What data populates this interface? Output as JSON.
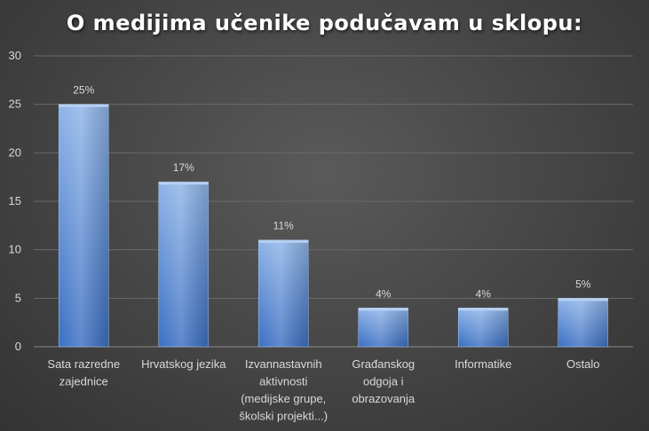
{
  "chart_data": {
    "type": "bar",
    "title": "O medijima učenike podučavam u sklopu:",
    "categories": [
      [
        "Sata razredne",
        "zajednice"
      ],
      [
        "Hrvatskog jezika"
      ],
      [
        "Izvannastavnih",
        "aktivnosti",
        "(medijske grupe,",
        "školski projekti...)"
      ],
      [
        "Građanskog",
        "odgoja i",
        "obrazovanja"
      ],
      [
        "Informatike"
      ],
      [
        "Ostalo"
      ]
    ],
    "values": [
      25,
      17,
      11,
      4,
      4,
      5
    ],
    "data_labels": [
      "25%",
      "17%",
      "11%",
      "4%",
      "4%",
      "5%"
    ],
    "ylim": [
      0,
      30
    ],
    "yticks": [
      0,
      5,
      10,
      15,
      20,
      25,
      30
    ],
    "grid": true,
    "colors": {
      "bar_top": "#8fb4e8",
      "bar_bottom": "#3b6fc2",
      "grid": "#6a6a6a",
      "text": "#d9d9d9"
    }
  }
}
